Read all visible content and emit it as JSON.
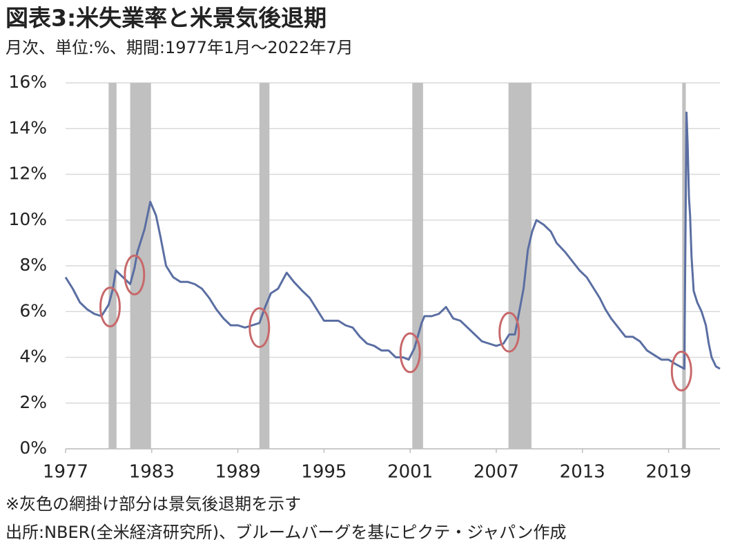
{
  "chart_data": {
    "type": "line",
    "title": "図表3:米失業率と米景気後退期",
    "subtitle": "月次、単位:%、期間:1977年1月～2022年7月",
    "notes": [
      "※灰色の網掛け部分は景気後退期を示す",
      "出所:NBER(全米経済研究所)、ブルームバーグを基にピクテ・ジャパン作成"
    ],
    "color": "#5a6ea2",
    "recession_color": "#c0c0c0",
    "highlight_color": "#c8686a",
    "grid": true,
    "xlim": [
      1977,
      2022.58
    ],
    "xticks": [
      1977,
      1983,
      1989,
      1995,
      2001,
      2007,
      2013,
      2019
    ],
    "ylim": [
      0,
      16
    ],
    "yticks": [
      {
        "value": 0,
        "label": "0%"
      },
      {
        "value": 2,
        "label": "2%"
      },
      {
        "value": 4,
        "label": "4%"
      },
      {
        "value": 6,
        "label": "6%"
      },
      {
        "value": 8,
        "label": "8%"
      },
      {
        "value": 10,
        "label": "10%"
      },
      {
        "value": 12,
        "label": "12%"
      },
      {
        "value": 14,
        "label": "14%"
      },
      {
        "value": 16,
        "label": "16%"
      }
    ],
    "recessions": [
      [
        1980.0,
        1980.55
      ],
      [
        1981.5,
        1982.95
      ],
      [
        1990.5,
        1991.2
      ],
      [
        2001.15,
        2001.9
      ],
      [
        2007.85,
        2009.45
      ],
      [
        2019.95,
        2020.2
      ]
    ],
    "highlights": [
      {
        "x": 1980.1,
        "y": 6.2
      },
      {
        "x": 1981.8,
        "y": 7.6
      },
      {
        "x": 1990.5,
        "y": 5.3
      },
      {
        "x": 2001.0,
        "y": 4.2
      },
      {
        "x": 2007.9,
        "y": 5.1
      },
      {
        "x": 2019.9,
        "y": 3.4
      }
    ],
    "x": [
      1977.0,
      1977.5,
      1978.0,
      1978.5,
      1979.0,
      1979.5,
      1980.0,
      1980.3,
      1980.5,
      1981.0,
      1981.5,
      1981.8,
      1982.0,
      1982.5,
      1982.9,
      1983.3,
      1983.6,
      1984.0,
      1984.5,
      1985.0,
      1985.5,
      1986.0,
      1986.5,
      1987.0,
      1987.5,
      1988.0,
      1988.5,
      1989.0,
      1989.5,
      1990.0,
      1990.5,
      1990.9,
      1991.3,
      1991.8,
      1992.4,
      1992.9,
      1993.5,
      1994.0,
      1994.5,
      1995.0,
      1995.5,
      1996.0,
      1996.5,
      1997.0,
      1997.5,
      1998.0,
      1998.5,
      1999.0,
      1999.5,
      2000.0,
      2000.5,
      2000.9,
      2001.3,
      2001.8,
      2002.0,
      2002.5,
      2003.0,
      2003.5,
      2004.0,
      2004.5,
      2005.0,
      2005.5,
      2006.0,
      2006.5,
      2007.0,
      2007.5,
      2007.9,
      2008.3,
      2008.6,
      2008.9,
      2009.2,
      2009.5,
      2009.8,
      2010.3,
      2010.8,
      2011.2,
      2011.8,
      2012.3,
      2012.8,
      2013.3,
      2013.8,
      2014.2,
      2014.6,
      2015.0,
      2015.5,
      2016.0,
      2016.5,
      2017.0,
      2017.5,
      2018.0,
      2018.5,
      2019.0,
      2019.5,
      2020.1,
      2020.25,
      2020.33,
      2020.42,
      2020.5,
      2020.6,
      2020.75,
      2021.0,
      2021.3,
      2021.6,
      2021.8,
      2022.0,
      2022.3,
      2022.58
    ],
    "values": [
      7.5,
      7.0,
      6.4,
      6.1,
      5.9,
      5.8,
      6.3,
      7.0,
      7.8,
      7.5,
      7.2,
      7.9,
      8.6,
      9.6,
      10.8,
      10.2,
      9.3,
      8.0,
      7.5,
      7.3,
      7.3,
      7.2,
      7.0,
      6.6,
      6.1,
      5.7,
      5.4,
      5.4,
      5.3,
      5.4,
      5.5,
      6.2,
      6.8,
      7.0,
      7.7,
      7.3,
      6.9,
      6.6,
      6.1,
      5.6,
      5.6,
      5.6,
      5.4,
      5.3,
      4.9,
      4.6,
      4.5,
      4.3,
      4.3,
      4.0,
      4.0,
      3.9,
      4.4,
      5.5,
      5.8,
      5.8,
      5.9,
      6.2,
      5.7,
      5.6,
      5.3,
      5.0,
      4.7,
      4.6,
      4.5,
      4.6,
      5.0,
      5.0,
      6.0,
      7.0,
      8.7,
      9.5,
      10.0,
      9.8,
      9.5,
      9.0,
      8.6,
      8.2,
      7.8,
      7.5,
      7.0,
      6.6,
      6.1,
      5.7,
      5.3,
      4.9,
      4.9,
      4.7,
      4.3,
      4.1,
      3.9,
      3.9,
      3.7,
      3.5,
      14.7,
      13.3,
      11.0,
      10.2,
      8.4,
      6.9,
      6.4,
      6.0,
      5.4,
      4.6,
      4.0,
      3.6,
      3.5
    ]
  }
}
